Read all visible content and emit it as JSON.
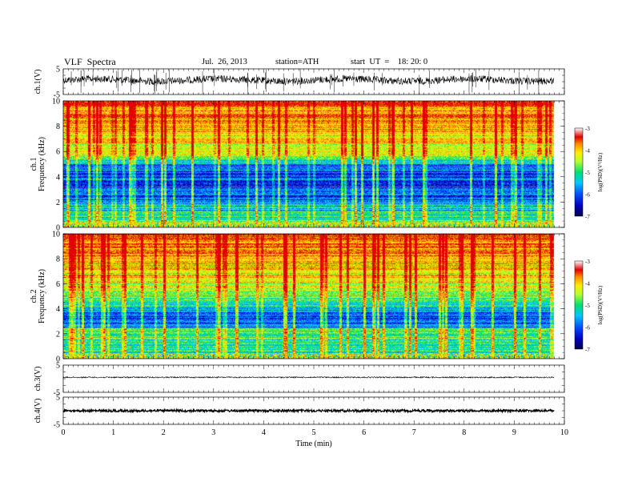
{
  "header": {
    "title": "VLF  Spectra",
    "date": "Jul.  26, 2013",
    "station": "station=ATH",
    "start": "start  UT  =    18: 20: 0"
  },
  "colors": {
    "spectrogram_scale": [
      "#000060",
      "#0000c8",
      "#0050ff",
      "#00c8ff",
      "#00e070",
      "#b0ff30",
      "#ffee00",
      "#ff8c00",
      "#e00000",
      "#ffffff"
    ],
    "waveform": "#000000"
  },
  "chart_data": [
    {
      "type": "line",
      "panel": "ch1-waveform",
      "ylabel": "ch.1(V)",
      "ylim": [
        -5,
        5
      ],
      "yticks": [
        "5",
        "-5"
      ],
      "xlim": [
        0,
        10
      ],
      "description_series": [
        {
          "x_start": 0,
          "x_end": 9.8,
          "mean": 0,
          "amplitude_approx": 1.5
        }
      ]
    },
    {
      "type": "heatmap",
      "panel": "ch1-spectrogram",
      "ylabel": "ch.1\nFrequency  (kHz)",
      "ylim": [
        0,
        10
      ],
      "yticks": [
        "0",
        "2",
        "4",
        "6",
        "8",
        "10"
      ],
      "xlim": [
        0,
        10
      ],
      "colorbar": {
        "label": "log(PSD)(V²/Hz)",
        "range": [
          -7,
          -3
        ],
        "ticks": [
          "-3",
          "-4",
          "-5",
          "-6",
          "-7"
        ]
      }
    },
    {
      "type": "heatmap",
      "panel": "ch2-spectrogram",
      "ylabel": "ch.2\nFrequency  (kHz)",
      "ylim": [
        0,
        10
      ],
      "yticks": [
        "0",
        "2",
        "4",
        "6",
        "8",
        "10"
      ],
      "xlim": [
        0,
        10
      ],
      "colorbar": {
        "label": "log(PSD)(V²/Hz)",
        "range": [
          -7,
          -3
        ],
        "ticks": [
          "-3",
          "-4",
          "-5",
          "-6",
          "-7"
        ]
      }
    },
    {
      "type": "line",
      "panel": "ch3-waveform",
      "ylabel": "ch.3(V)",
      "ylim": [
        -5,
        5
      ],
      "yticks": [
        "5",
        "-5"
      ],
      "xlim": [
        0,
        10
      ]
    },
    {
      "type": "line",
      "panel": "ch4-waveform",
      "ylabel": "ch.4(V)",
      "ylim": [
        -5,
        5
      ],
      "yticks": [
        "5",
        "-5"
      ],
      "xlim": [
        0,
        10
      ],
      "xlabel": "Time  (min)",
      "xticks": [
        "0",
        "1",
        "2",
        "3",
        "4",
        "5",
        "6",
        "7",
        "8",
        "9",
        "10"
      ]
    }
  ]
}
